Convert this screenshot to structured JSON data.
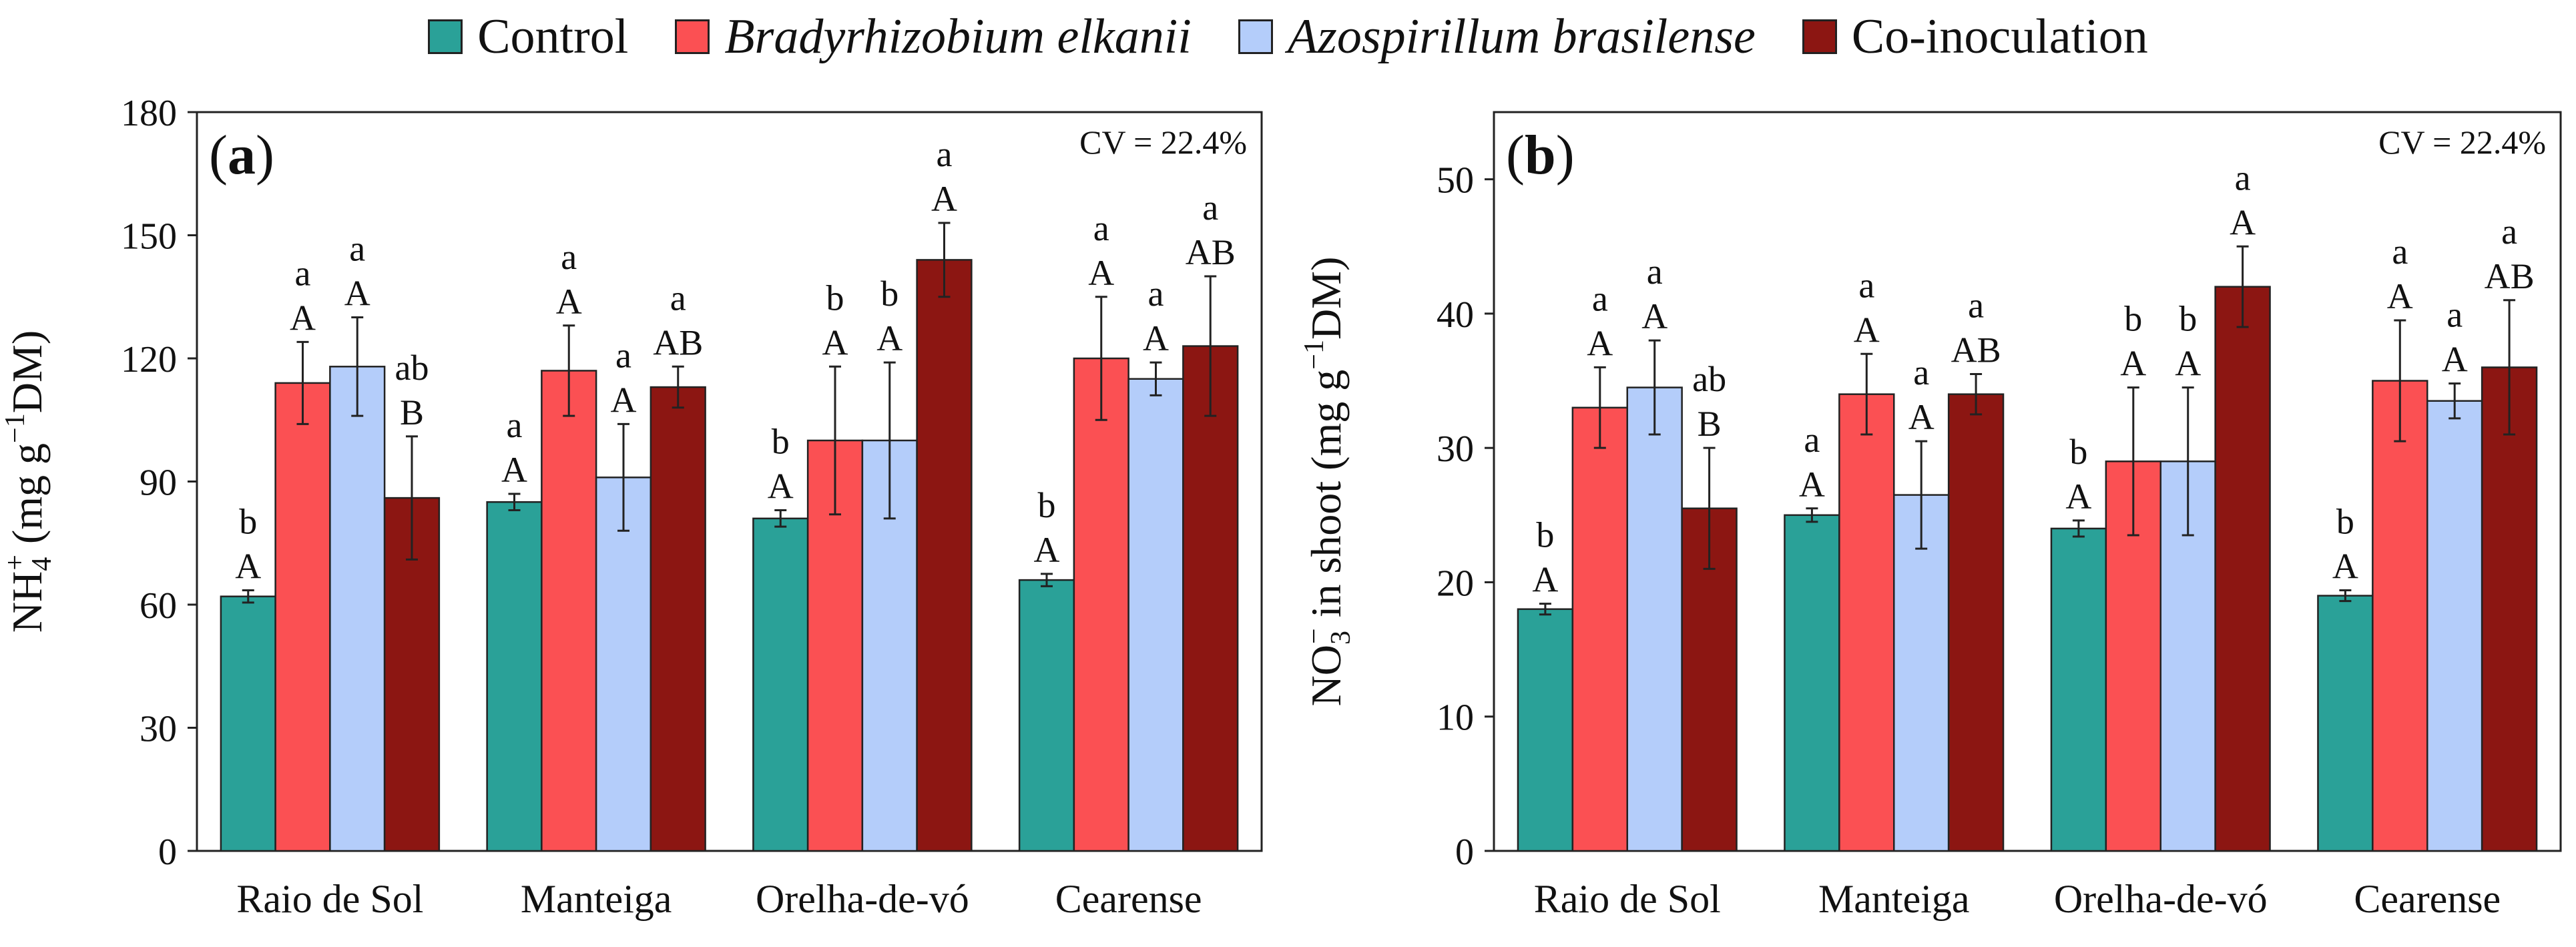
{
  "legend": [
    {
      "label": "Control",
      "color": "#2aa198",
      "italic": false
    },
    {
      "label": "Bradyrhizobium elkanii",
      "color": "#fb5053",
      "italic": true
    },
    {
      "label": "Azospirillum brasilense",
      "color": "#b4cdfa",
      "italic": true
    },
    {
      "label": "Co-inoculation",
      "color": "#8c1612",
      "italic": false
    }
  ],
  "chart_data": [
    {
      "type": "bar",
      "panel_label": "a",
      "cv_text": "CV = 22.4%",
      "ylabel_parts": [
        "NH",
        "4",
        "+",
        " (mg g",
        "−1",
        "DM)"
      ],
      "ylim": [
        0,
        180
      ],
      "yticks": [
        0,
        30,
        60,
        90,
        120,
        150,
        180
      ],
      "categories": [
        "Raio de Sol",
        "Manteiga",
        "Orelha-de-vó",
        "Cearense"
      ],
      "series": [
        {
          "name": "Control",
          "values": [
            62,
            85,
            81,
            66
          ],
          "errors": [
            1.5,
            2,
            2,
            1.5
          ],
          "upper": [
            "b",
            "a",
            "b",
            "b"
          ],
          "lower": [
            "A",
            "A",
            "A",
            "A"
          ]
        },
        {
          "name": "Bradyrhizobium elkanii",
          "values": [
            114,
            117,
            100,
            120
          ],
          "errors": [
            10,
            11,
            18,
            15
          ],
          "upper": [
            "a",
            "a",
            "b",
            "a"
          ],
          "lower": [
            "A",
            "A",
            "A",
            "A"
          ]
        },
        {
          "name": "Azospirillum brasilense",
          "values": [
            118,
            91,
            100,
            115
          ],
          "errors": [
            12,
            13,
            19,
            4
          ],
          "upper": [
            "a",
            "a",
            "b",
            "a"
          ],
          "lower": [
            "A",
            "A",
            "A",
            "A"
          ]
        },
        {
          "name": "Co-inoculation",
          "values": [
            86,
            113,
            144,
            123
          ],
          "errors": [
            15,
            5,
            9,
            17
          ],
          "upper": [
            "ab",
            "a",
            "a",
            "a"
          ],
          "lower": [
            "B",
            "AB",
            "A",
            "AB"
          ]
        }
      ]
    },
    {
      "type": "bar",
      "panel_label": "b",
      "cv_text": "CV = 22.4%",
      "ylabel_parts": [
        "NO",
        "3",
        "−",
        " in shoot (mg g",
        "−1",
        "DM)"
      ],
      "ylim": [
        0,
        55
      ],
      "yticks": [
        0,
        10,
        20,
        30,
        40,
        50
      ],
      "categories": [
        "Raio de Sol",
        "Manteiga",
        "Orelha-de-vó",
        "Cearense"
      ],
      "series": [
        {
          "name": "Control",
          "values": [
            18,
            25,
            24,
            19
          ],
          "errors": [
            0.4,
            0.5,
            0.6,
            0.4
          ],
          "upper": [
            "b",
            "a",
            "b",
            "b"
          ],
          "lower": [
            "A",
            "A",
            "A",
            "A"
          ]
        },
        {
          "name": "Bradyrhizobium elkanii",
          "values": [
            33,
            34,
            29,
            35
          ],
          "errors": [
            3,
            3,
            5.5,
            4.5
          ],
          "upper": [
            "a",
            "a",
            "b",
            "a"
          ],
          "lower": [
            "A",
            "A",
            "A",
            "A"
          ]
        },
        {
          "name": "Azospirillum brasilense",
          "values": [
            34.5,
            26.5,
            29,
            33.5
          ],
          "errors": [
            3.5,
            4,
            5.5,
            1.3
          ],
          "upper": [
            "a",
            "a",
            "b",
            "a"
          ],
          "lower": [
            "A",
            "A",
            "A",
            "A"
          ]
        },
        {
          "name": "Co-inoculation",
          "values": [
            25.5,
            34,
            42,
            36
          ],
          "errors": [
            4.5,
            1.5,
            3,
            5
          ],
          "upper": [
            "ab",
            "a",
            "a",
            "a"
          ],
          "lower": [
            "B",
            "AB",
            "A",
            "AB"
          ]
        }
      ]
    }
  ]
}
